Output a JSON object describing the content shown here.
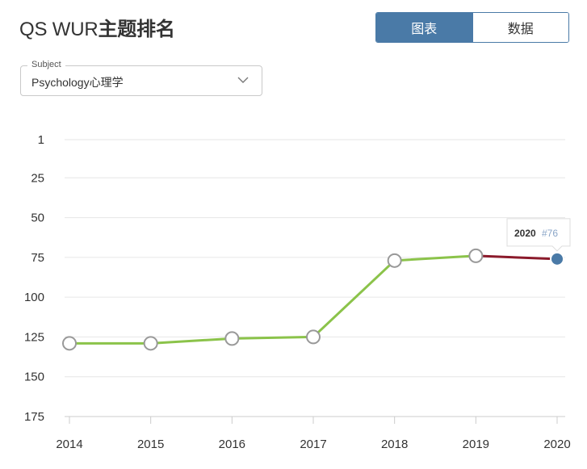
{
  "header": {
    "title_prefix": "QS WUR",
    "title_suffix": "主题排名",
    "tabs": [
      {
        "label": "图表",
        "active": true
      },
      {
        "label": "数据",
        "active": false
      }
    ]
  },
  "subject_select": {
    "legend": "Subject",
    "value": "Psychology心理学",
    "icon": "chevron-down-icon"
  },
  "colors": {
    "accent": "#4a7aa7",
    "line_green": "#8bc34a",
    "line_red": "#8b1a2b",
    "marker_fill": "#ffffff",
    "marker_stroke": "#999999"
  },
  "chart_data": {
    "type": "line",
    "x": [
      "2014",
      "2015",
      "2016",
      "2017",
      "2018",
      "2019",
      "2020"
    ],
    "series": [
      {
        "values": [
          129,
          129,
          126,
          125,
          77,
          74,
          76
        ]
      }
    ],
    "yticks": [
      "1",
      "25",
      "50",
      "75",
      "100",
      "125",
      "150",
      "175"
    ],
    "ylim": [
      1,
      175
    ],
    "y_inverted": true,
    "grid": true,
    "highlight": {
      "year": "2020",
      "rank": "#76"
    }
  }
}
